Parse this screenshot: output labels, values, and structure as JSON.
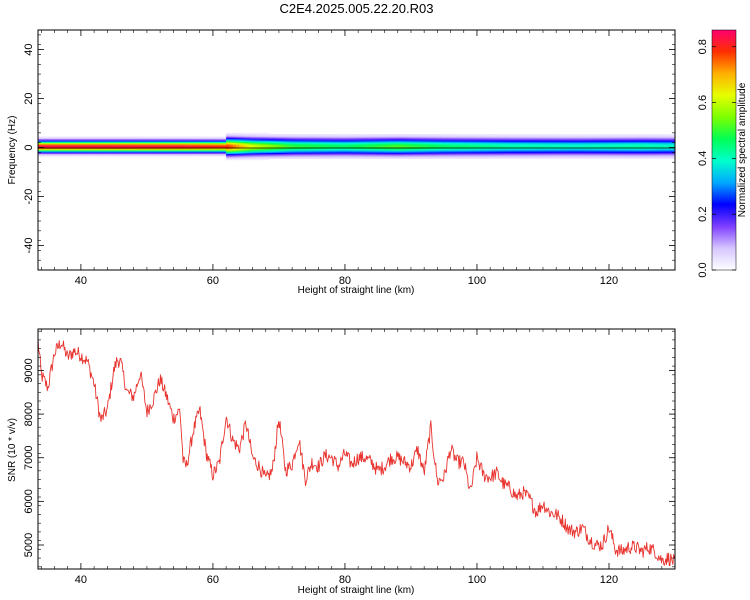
{
  "page": {
    "title": "C2E4.2025.005.22.20.R03"
  },
  "chart_data": [
    {
      "type": "heatmap",
      "xlabel": "Height of straight line (km)",
      "ylabel": "Frequency (Hz)",
      "xlim": [
        33.5,
        130
      ],
      "ylim": [
        -50,
        48
      ],
      "xticks": [
        40,
        60,
        80,
        100,
        120
      ],
      "yticks": [
        -40,
        -20,
        0,
        20,
        40
      ],
      "ridge_frequency_hz": 0.5,
      "colorbar": {
        "label": "Normalized spectral amplitude",
        "range": [
          0,
          0.86
        ],
        "ticks": [
          0.0,
          0.2,
          0.4,
          0.6,
          0.8
        ],
        "tick_labels": [
          "0.0",
          "0.2",
          "0.4",
          "0.6",
          "0.8"
        ],
        "colors": [
          "#ffffff",
          "#d6c6ff",
          "#7f3fff",
          "#0000ff",
          "#00a8ff",
          "#00ffcc",
          "#00ff55",
          "#7cff00",
          "#e6ff00",
          "#ffb000",
          "#ff3000",
          "#ff0070"
        ]
      },
      "peak_amplitude_profile": [
        {
          "x": 34,
          "a": 0.84
        },
        {
          "x": 45,
          "a": 0.84
        },
        {
          "x": 55,
          "a": 0.83
        },
        {
          "x": 62,
          "a": 0.8
        },
        {
          "x": 66,
          "a": 0.62
        },
        {
          "x": 72,
          "a": 0.5
        },
        {
          "x": 80,
          "a": 0.46
        },
        {
          "x": 88,
          "a": 0.52
        },
        {
          "x": 95,
          "a": 0.46
        },
        {
          "x": 105,
          "a": 0.42
        },
        {
          "x": 115,
          "a": 0.4
        },
        {
          "x": 125,
          "a": 0.42
        },
        {
          "x": 130,
          "a": 0.4
        }
      ]
    },
    {
      "type": "line",
      "xlabel": "Height of straight line (km)",
      "ylabel": "SNR (10 * v/v)",
      "xlim": [
        33.5,
        130
      ],
      "ylim": [
        4450,
        9950
      ],
      "xticks": [
        40,
        60,
        80,
        100,
        120
      ],
      "yticks": [
        5000,
        6000,
        7000,
        8000,
        9000
      ],
      "color": "#e8332e",
      "series": [
        {
          "x": [
            33.5,
            34,
            35,
            36,
            37,
            38,
            39,
            40,
            41,
            42,
            43,
            44,
            45,
            45.5,
            46,
            47,
            48,
            49,
            50,
            51,
            52,
            53,
            54,
            55,
            55.5,
            56,
            57,
            58,
            59,
            60,
            61,
            62,
            63,
            64,
            65,
            66,
            67,
            68,
            69,
            70,
            71,
            72,
            73,
            74,
            75,
            76,
            77,
            78,
            79,
            80,
            81,
            82,
            83,
            84,
            85,
            86,
            87,
            88,
            89,
            90,
            91,
            92,
            93,
            94,
            95,
            96,
            97,
            98,
            99,
            100,
            101,
            102,
            103,
            104,
            105,
            106,
            107,
            108,
            109,
            110,
            111,
            112,
            113,
            114,
            115,
            116,
            117,
            118,
            119,
            120,
            121,
            122,
            123,
            124,
            125,
            126,
            127,
            128,
            129,
            130
          ],
          "y": [
            9700,
            8900,
            8600,
            9400,
            9650,
            9300,
            9450,
            9350,
            9200,
            8700,
            7850,
            8100,
            9000,
            9250,
            9200,
            8500,
            8400,
            8950,
            8050,
            8350,
            8800,
            8400,
            7900,
            8100,
            6900,
            6800,
            7600,
            8100,
            7100,
            6600,
            6900,
            7950,
            7400,
            7200,
            7800,
            7000,
            6800,
            6500,
            6700,
            7900,
            6700,
            6850,
            7450,
            6500,
            6900,
            6800,
            7050,
            7000,
            6800,
            7100,
            6850,
            7000,
            7000,
            6900,
            6700,
            6800,
            7000,
            7000,
            6900,
            6800,
            7200,
            6650,
            7700,
            6450,
            6550,
            7200,
            6900,
            6900,
            6200,
            7000,
            6600,
            6550,
            6650,
            6400,
            6300,
            6100,
            6200,
            6050,
            5750,
            5950,
            5750,
            5700,
            5550,
            5350,
            5300,
            5400,
            5150,
            5000,
            5000,
            5400,
            4900,
            4850,
            4950,
            4950,
            4850,
            4950,
            4850,
            4650,
            4700,
            4600
          ]
        }
      ]
    }
  ]
}
